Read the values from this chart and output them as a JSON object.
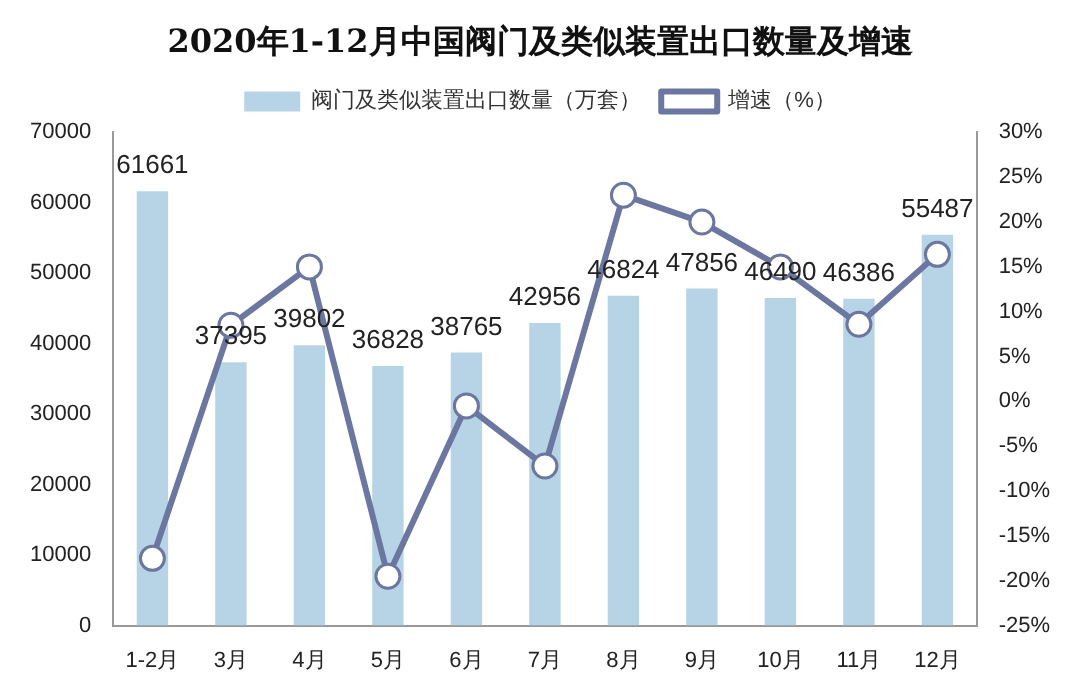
{
  "chart_data": {
    "type": "bar",
    "title": "2020年1-12月中国阀门及类似装置出口数量及增速",
    "categories": [
      "1-2月",
      "3月",
      "4月",
      "5月",
      "6月",
      "7月",
      "8月",
      "9月",
      "10月",
      "11月",
      "12月"
    ],
    "series": [
      {
        "name": "阀门及类似装置出口数量（万套）",
        "color": "#b7d4e6",
        "values": [
          61661,
          37395,
          39802,
          36828,
          38765,
          42956,
          46824,
          47856,
          46490,
          46386,
          55487
        ],
        "value_labels": [
          "61661",
          "37395",
          "39802",
          "36828",
          "38765",
          "42956",
          "46824",
          "47856",
          "46490",
          "46386",
          "55487"
        ]
      },
      {
        "name": "增速（%）",
        "type": "line",
        "axis": "y2",
        "color": "#6b77a0",
        "marker": "circle",
        "values": [
          -17.5,
          8.5,
          15,
          -19.5,
          -0.5,
          -7.2,
          23,
          20,
          15,
          8.6,
          16.4
        ]
      }
    ],
    "ylim": [
      0,
      70000
    ],
    "yticks": [
      0,
      10000,
      20000,
      30000,
      40000,
      50000,
      60000,
      70000
    ],
    "y2lim": [
      -25,
      30
    ],
    "y2ticks": [
      {
        "value": -25,
        "label": "-25%"
      },
      {
        "value": -20,
        "label": "-20%"
      },
      {
        "value": -15,
        "label": "-15%"
      },
      {
        "value": -10,
        "label": "-10%"
      },
      {
        "value": -5,
        "label": "-5%"
      },
      {
        "value": 0,
        "label": "0%"
      },
      {
        "value": 5,
        "label": "5%"
      },
      {
        "value": 10,
        "label": "10%"
      },
      {
        "value": 15,
        "label": "15%"
      },
      {
        "value": 20,
        "label": "20%"
      },
      {
        "value": 25,
        "label": "25%"
      },
      {
        "value": 30,
        "label": "30%"
      }
    ],
    "grid": false,
    "legend": "top"
  }
}
